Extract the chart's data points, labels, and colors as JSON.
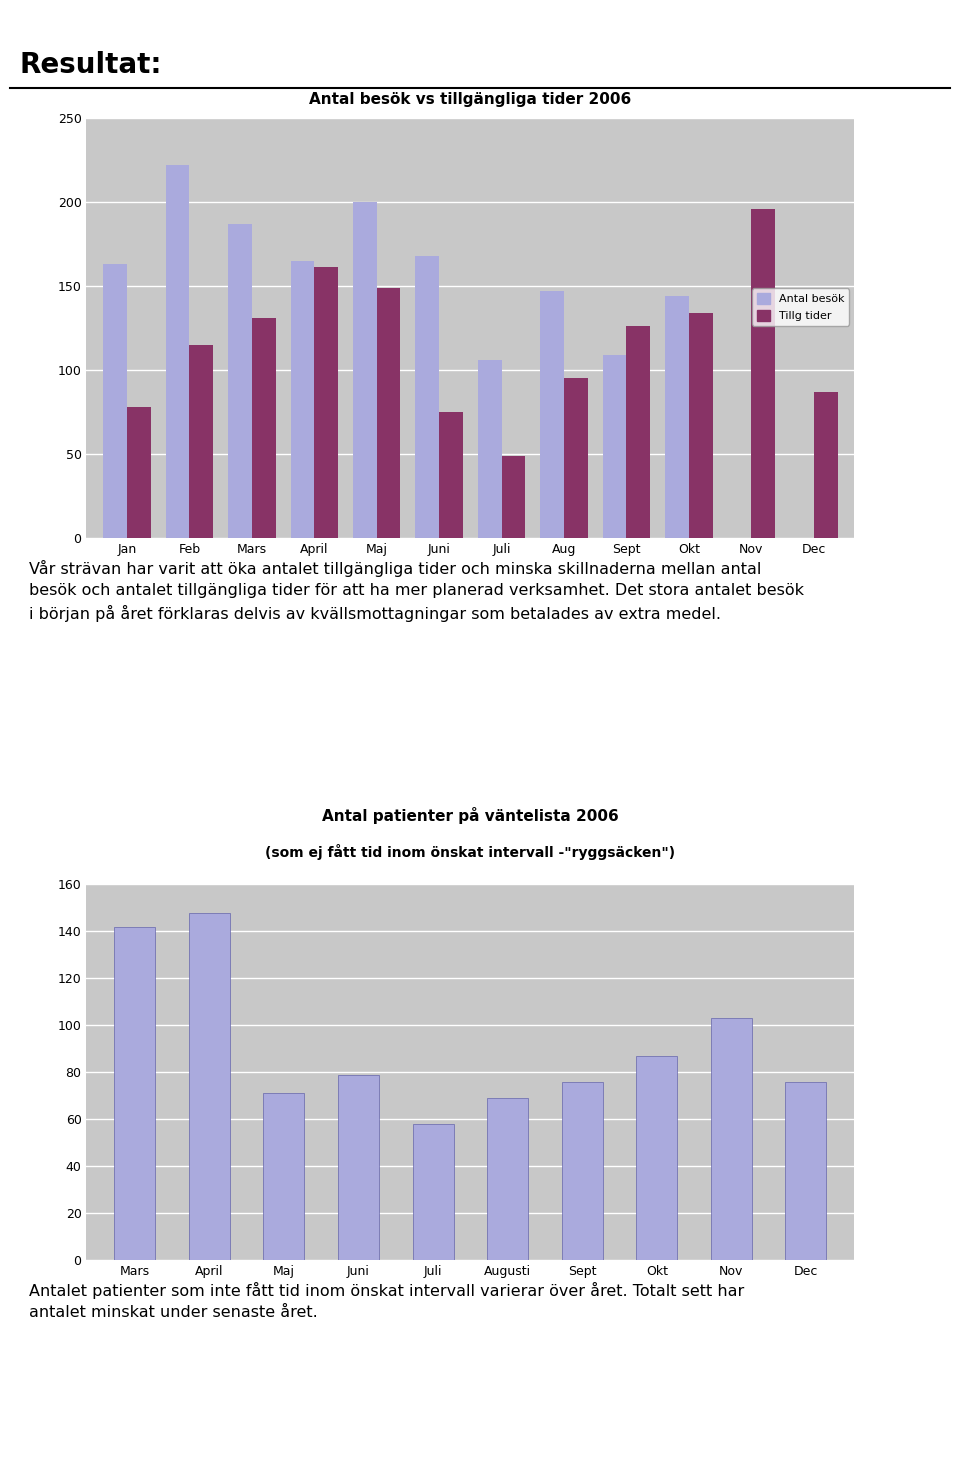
{
  "chart1": {
    "title": "Antal besök vs tillgängliga tider 2006",
    "categories": [
      "Jan",
      "Feb",
      "Mars",
      "April",
      "Maj",
      "Juni",
      "Juli",
      "Aug",
      "Sept",
      "Okt",
      "Nov",
      "Dec"
    ],
    "series1_vals": [
      163,
      222,
      187,
      165,
      200,
      168,
      106,
      147,
      109,
      144,
      0,
      0
    ],
    "series2_vals": [
      78,
      115,
      131,
      161,
      149,
      75,
      49,
      95,
      126,
      134,
      196,
      87
    ],
    "color_besok": "#AAAADD",
    "color_tillg": "#883366",
    "ylim": [
      0,
      250
    ],
    "yticks": [
      0,
      50,
      100,
      150,
      200,
      250
    ],
    "legend1": "Antal besök",
    "legend2": "Tillg tider",
    "bg_color": "#C8C8C8"
  },
  "chart2": {
    "title1": "Antal patienter på väntelista 2006",
    "title2": "(som ej fått tid inom önskat intervall -\"ryggsäcken\")",
    "categories": [
      "Mars",
      "April",
      "Maj",
      "Juni",
      "Juli",
      "Augusti",
      "Sept",
      "Okt",
      "Nov",
      "Dec"
    ],
    "values": [
      142,
      148,
      71,
      79,
      58,
      69,
      76,
      87,
      103,
      76
    ],
    "color": "#AAAADD",
    "ylim": [
      0,
      160
    ],
    "yticks": [
      0,
      20,
      40,
      60,
      80,
      100,
      120,
      140,
      160
    ],
    "bg_color": "#C8C8C8"
  },
  "text1": "Vår strävan har varit att öka antalet tillgängliga tider och minska skillnaderna mellan antal\nbesök och antalet tillgängliga tider för att ha mer planerad verksamhet. Det stora antalet besök\ni början på året förklaras delvis av kvällsmottagningar som betalades av extra medel.",
  "text2": "Antalet patienter som inte fått tid inom önskat intervall varierar över året. Totalt sett har\nantalet minskat under senaste året.",
  "header": "Resultat:",
  "page_bg": "#FFFFFF"
}
